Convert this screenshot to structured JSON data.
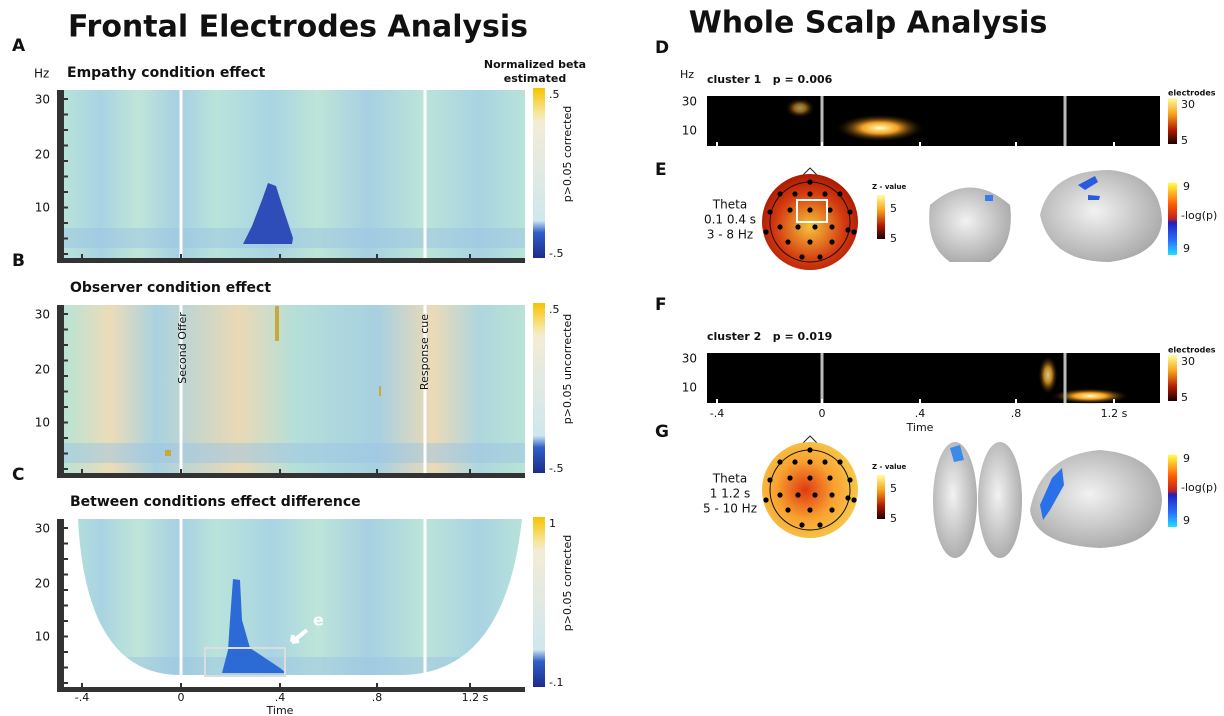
{
  "left": {
    "title": "Frontal Electrodes Analysis",
    "y_unit": "Hz",
    "colorbar_title": [
      "Normalized beta",
      "estimated"
    ],
    "panels": [
      {
        "letter": "A",
        "title": "Empathy condition effect",
        "y_ticks": [
          "30",
          "20",
          "10"
        ],
        "colorbar": {
          "top": ".5",
          "bottom": "-.5",
          "label": "p>0.05 corrected"
        }
      },
      {
        "letter": "B",
        "title": "Observer condition effect",
        "y_ticks": [
          "30",
          "20",
          "10"
        ],
        "colorbar": {
          "top": ".5",
          "bottom": "-.5",
          "label": "p>0.05 uncorrected"
        }
      },
      {
        "letter": "C",
        "title": "Between conditions effect difference",
        "y_ticks": [
          "30",
          "20",
          "10"
        ],
        "colorbar": {
          "top": "1",
          "bottom": "-.1",
          "label": "p>0.05 corrected"
        }
      }
    ],
    "line_labels": [
      "Second Offer",
      "Response cue"
    ],
    "arrow_label": "e",
    "x_ticks": [
      "-.4",
      "0",
      ".4",
      ".8",
      "1.2 s"
    ],
    "x_label": "Time"
  },
  "right": {
    "title": "Whole Scalp Analysis",
    "y_unit": "Hz",
    "clusters": [
      {
        "letter": "D",
        "title": "cluster 1   p = 0.006",
        "y_ticks": [
          "30",
          "10"
        ],
        "colorbar": {
          "title": "electrodes",
          "top": "30",
          "bottom": "5"
        }
      },
      {
        "letter": "F",
        "title": "cluster 2   p = 0.019",
        "y_ticks": [
          "30",
          "10"
        ],
        "colorbar": {
          "title": "electrodes",
          "top": "30",
          "bottom": "5"
        }
      }
    ],
    "x_ticks": [
      "-.4",
      "0",
      ".4",
      ".8",
      "1.2 s"
    ],
    "x_label": "Time",
    "topos": [
      {
        "letter": "E",
        "lines": [
          "Theta",
          "0.1 0.4 s",
          "3 - 8 Hz"
        ],
        "z_title": "Z - value",
        "z_top": "5",
        "z_bottom": "5",
        "p_top": "9",
        "p_label": "-log(p)",
        "p_bottom": "9"
      },
      {
        "letter": "G",
        "lines": [
          "Theta",
          "1 1.2 s",
          "5 - 10 Hz"
        ],
        "z_title": "Z - value",
        "z_top": "5",
        "z_bottom": "5",
        "p_top": "9",
        "p_label": "-log(p)",
        "p_bottom": "9"
      }
    ]
  }
}
